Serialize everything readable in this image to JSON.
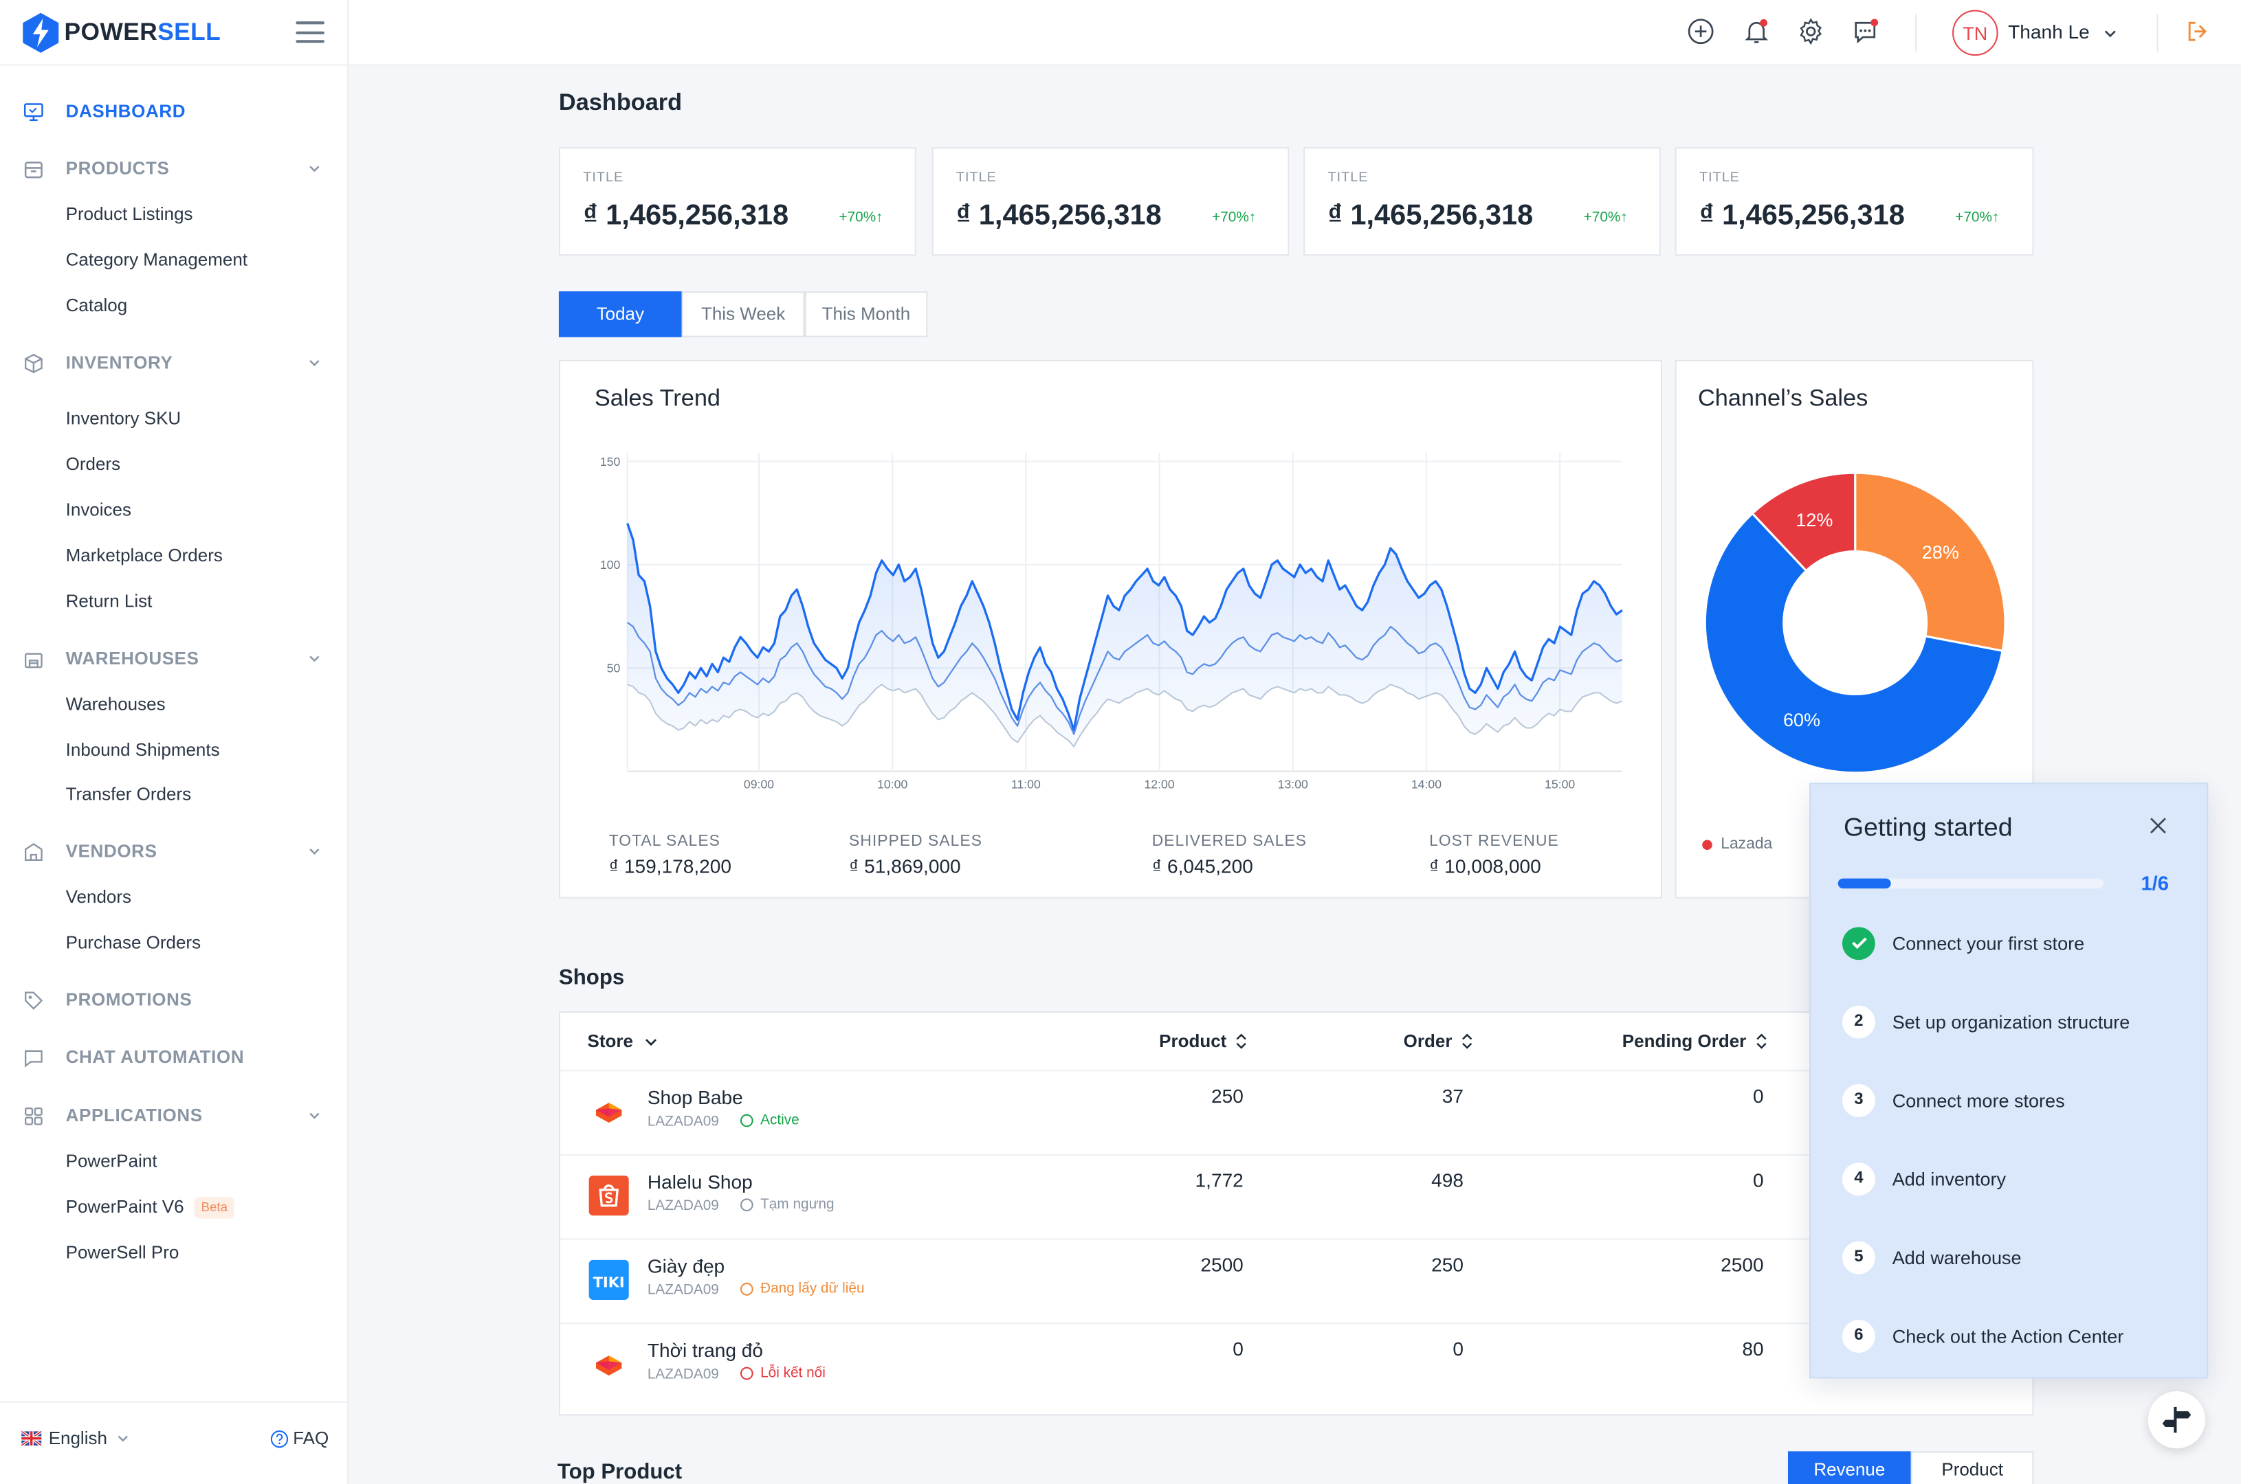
{
  "brand": {
    "name_prefix": "POWER",
    "name_suffix": "SELL"
  },
  "sidebar": {
    "items": [
      {
        "label": "DASHBOARD",
        "icon": "monitor-icon",
        "active": true
      },
      {
        "label": "PRODUCTS",
        "icon": "box-icon",
        "children": [
          "Product Listings",
          "Category Management",
          "Catalog"
        ]
      },
      {
        "label": "INVENTORY",
        "icon": "cube-icon",
        "children": [
          "Inventory SKU",
          "Orders",
          "Invoices",
          "Marketplace Orders",
          "Return List"
        ]
      },
      {
        "label": "WAREHOUSES",
        "icon": "warehouse-icon",
        "children": [
          "Warehouses",
          "Inbound Shipments",
          "Transfer Orders"
        ]
      },
      {
        "label": "VENDORS",
        "icon": "store-icon",
        "children": [
          "Vendors",
          "Purchase Orders"
        ]
      },
      {
        "label": "PROMOTIONS",
        "icon": "tag-icon"
      },
      {
        "label": "CHAT AUTOMATION",
        "icon": "chat-icon"
      },
      {
        "label": "APPLICATIONS",
        "icon": "grid-icon",
        "children": [
          "PowerPaint",
          "PowerPaint V6",
          "PowerSell Pro"
        ]
      }
    ],
    "beta_badge": "Beta",
    "footer": {
      "language": "English",
      "faq": "FAQ"
    }
  },
  "header": {
    "user_initials": "TN",
    "user_name": "Thanh Le",
    "icons": [
      "plus-circle-icon",
      "bell-icon",
      "gear-icon",
      "chat-alert-icon",
      "logout-icon"
    ]
  },
  "page": {
    "title": "Dashboard"
  },
  "kpis": [
    {
      "title": "TITLE",
      "value": "₫ 1,465,256,318",
      "delta": "+70%↑"
    },
    {
      "title": "TITLE",
      "value": "₫ 1,465,256,318",
      "delta": "+70%↑"
    },
    {
      "title": "TITLE",
      "value": "₫ 1,465,256,318",
      "delta": "+70%↑"
    },
    {
      "title": "TITLE",
      "value": "₫ 1,465,256,318",
      "delta": "+70%↑"
    }
  ],
  "range_tabs": [
    "Today",
    "This Week",
    "This Month"
  ],
  "sales_trend": {
    "title": "Sales Trend",
    "stats": [
      {
        "label": "TOTAL SALES",
        "value": "₫ 159,178,200"
      },
      {
        "label": "SHIPPED SALES",
        "value": "₫ 51,869,000"
      },
      {
        "label": "DELIVERED SALES",
        "value": "₫ 6,045,200"
      },
      {
        "label": "LOST REVENUE",
        "value": "₫ 10,008,000"
      }
    ]
  },
  "chart_data": [
    {
      "type": "line",
      "title": "Sales Trend",
      "x_ticks": [
        "09:00",
        "10:00",
        "11:00",
        "12:00",
        "13:00",
        "14:00",
        "15:00"
      ],
      "y_ticks": [
        150,
        100,
        50
      ],
      "ylim": [
        0,
        150
      ],
      "grid": true,
      "series": [
        {
          "values": [
            120,
            112,
            95,
            92,
            80,
            58,
            50,
            45,
            42,
            38,
            42,
            48,
            45,
            50,
            46,
            52,
            48,
            55,
            53,
            60,
            65,
            62,
            58,
            55,
            60,
            58,
            62,
            75,
            78,
            85,
            88,
            80,
            70,
            62,
            58,
            54,
            52,
            50,
            45,
            50,
            62,
            72,
            78,
            85,
            96,
            102,
            98,
            95,
            100,
            92,
            94,
            98,
            88,
            75,
            62,
            55,
            58,
            65,
            72,
            80,
            85,
            92,
            86,
            80,
            72,
            62,
            50,
            40,
            30,
            25,
            38,
            48,
            55,
            60,
            52,
            48,
            40,
            35,
            28,
            20,
            35,
            45,
            55,
            65,
            75,
            85,
            80,
            78,
            85,
            88,
            92,
            95,
            98,
            92,
            90,
            94,
            88,
            85,
            80,
            68,
            66,
            70,
            75,
            72,
            74,
            80,
            88,
            92,
            96,
            98,
            90,
            86,
            84,
            92,
            100,
            102,
            98,
            96,
            94,
            100,
            96,
            98,
            94,
            92,
            102,
            95,
            88,
            90,
            85,
            80,
            78,
            82,
            90,
            96,
            100,
            108,
            105,
            98,
            92,
            88,
            84,
            86,
            90,
            92,
            88,
            80,
            70,
            60,
            48,
            40,
            38,
            42,
            50,
            45,
            40,
            48,
            52,
            58,
            50,
            46,
            44,
            52,
            60,
            64,
            62,
            70,
            68,
            66,
            78,
            86,
            88,
            92,
            90,
            86,
            80,
            76,
            78
          ]
        },
        {
          "values": [
            72,
            70,
            65,
            62,
            58,
            45,
            40,
            37,
            35,
            32,
            34,
            38,
            36,
            40,
            38,
            41,
            39,
            43,
            42,
            46,
            48,
            46,
            44,
            42,
            45,
            43,
            46,
            54,
            56,
            60,
            62,
            58,
            52,
            47,
            44,
            41,
            40,
            38,
            35,
            38,
            46,
            52,
            55,
            60,
            66,
            68,
            65,
            63,
            66,
            62,
            63,
            65,
            59,
            52,
            45,
            41,
            43,
            47,
            51,
            55,
            58,
            62,
            59,
            55,
            50,
            45,
            38,
            32,
            26,
            22,
            30,
            36,
            40,
            43,
            39,
            36,
            31,
            28,
            24,
            18,
            27,
            34,
            40,
            46,
            52,
            58,
            55,
            54,
            58,
            60,
            62,
            64,
            66,
            62,
            61,
            63,
            60,
            58,
            55,
            48,
            47,
            50,
            52,
            51,
            52,
            55,
            59,
            62,
            64,
            65,
            61,
            59,
            58,
            62,
            66,
            67,
            65,
            64,
            63,
            66,
            64,
            65,
            63,
            62,
            67,
            64,
            60,
            61,
            58,
            55,
            54,
            56,
            61,
            64,
            66,
            70,
            68,
            65,
            62,
            60,
            57,
            58,
            61,
            62,
            60,
            55,
            49,
            43,
            36,
            31,
            30,
            32,
            37,
            34,
            31,
            36,
            38,
            42,
            37,
            35,
            34,
            38,
            43,
            45,
            44,
            49,
            48,
            47,
            54,
            58,
            60,
            62,
            61,
            58,
            55,
            53,
            54
          ]
        },
        {
          "values": [
            42,
            41,
            38,
            37,
            34,
            28,
            25,
            23,
            22,
            20,
            21,
            24,
            22,
            25,
            23,
            25,
            24,
            27,
            26,
            29,
            30,
            29,
            27,
            26,
            28,
            27,
            29,
            33,
            34,
            37,
            38,
            36,
            32,
            29,
            27,
            26,
            25,
            24,
            22,
            24,
            28,
            32,
            34,
            37,
            40,
            42,
            40,
            39,
            40,
            38,
            39,
            40,
            37,
            32,
            28,
            25,
            26,
            29,
            31,
            34,
            36,
            38,
            36,
            34,
            31,
            28,
            24,
            20,
            16,
            14,
            18,
            22,
            25,
            27,
            24,
            22,
            19,
            17,
            15,
            12,
            17,
            21,
            25,
            28,
            32,
            35,
            34,
            33,
            35,
            36,
            38,
            39,
            40,
            38,
            37,
            39,
            37,
            35,
            34,
            30,
            29,
            31,
            32,
            31,
            32,
            34,
            36,
            38,
            39,
            40,
            37,
            36,
            35,
            38,
            40,
            41,
            40,
            39,
            38,
            40,
            39,
            40,
            38,
            38,
            41,
            39,
            37,
            37,
            36,
            34,
            33,
            34,
            37,
            39,
            40,
            42,
            41,
            40,
            38,
            37,
            35,
            36,
            37,
            38,
            37,
            34,
            30,
            27,
            22,
            19,
            18,
            20,
            23,
            21,
            19,
            22,
            23,
            26,
            23,
            21,
            21,
            23,
            26,
            28,
            27,
            30,
            29,
            29,
            33,
            36,
            37,
            38,
            38,
            36,
            34,
            33,
            34
          ]
        }
      ]
    },
    {
      "type": "pie",
      "title": "Channel’s Sales",
      "slices": [
        {
          "label": "28%",
          "value": 28,
          "color": "#fb8c3f"
        },
        {
          "label": "60%",
          "value": 60,
          "color": "#0f6cf0"
        },
        {
          "label": "12%",
          "value": 12,
          "color": "#e5393f"
        }
      ],
      "legend": [
        {
          "name": "Lazada",
          "color": "#e5393f"
        }
      ]
    }
  ],
  "shops": {
    "title": "Shops",
    "columns": [
      "Store",
      "Product",
      "Order",
      "Pending Order"
    ],
    "rows": [
      {
        "name": "Shop Babe",
        "code": "LAZADA09",
        "status": "Active",
        "status_color": "#16a34a",
        "product": "250",
        "order": "37",
        "pending": "0",
        "logo": "lazada"
      },
      {
        "name": "Halelu Shop",
        "code": "LAZADA09",
        "status": "Tạm ngưng",
        "status_color": "#8a95a3",
        "product": "1,772",
        "order": "498",
        "pending": "0",
        "logo": "shopee"
      },
      {
        "name": "Giày đẹp",
        "code": "LAZADA09",
        "status": "Đang lấy dữ liệu",
        "status_color": "#f08c3a",
        "product": "2500",
        "order": "250",
        "pending": "2500",
        "logo": "tiki"
      },
      {
        "name": "Thời trang đỏ",
        "code": "LAZADA09",
        "status": "Lỗi kết nối",
        "status_color": "#e5393f",
        "product": "0",
        "order": "0",
        "pending": "80",
        "logo": "lazada"
      }
    ]
  },
  "top_product": {
    "title": "Top Product",
    "tabs": [
      "Revenue",
      "Product"
    ]
  },
  "getting_started": {
    "title": "Getting started",
    "progress_text": "1/6",
    "progress_fraction": 0.2,
    "steps": [
      {
        "num": "",
        "label": "Connect your first store",
        "done": true
      },
      {
        "num": "2",
        "label": "Set up organization structure"
      },
      {
        "num": "3",
        "label": "Connect more stores"
      },
      {
        "num": "4",
        "label": "Add inventory"
      },
      {
        "num": "5",
        "label": "Add warehouse"
      },
      {
        "num": "6",
        "label": "Check out the Action Center"
      }
    ]
  }
}
